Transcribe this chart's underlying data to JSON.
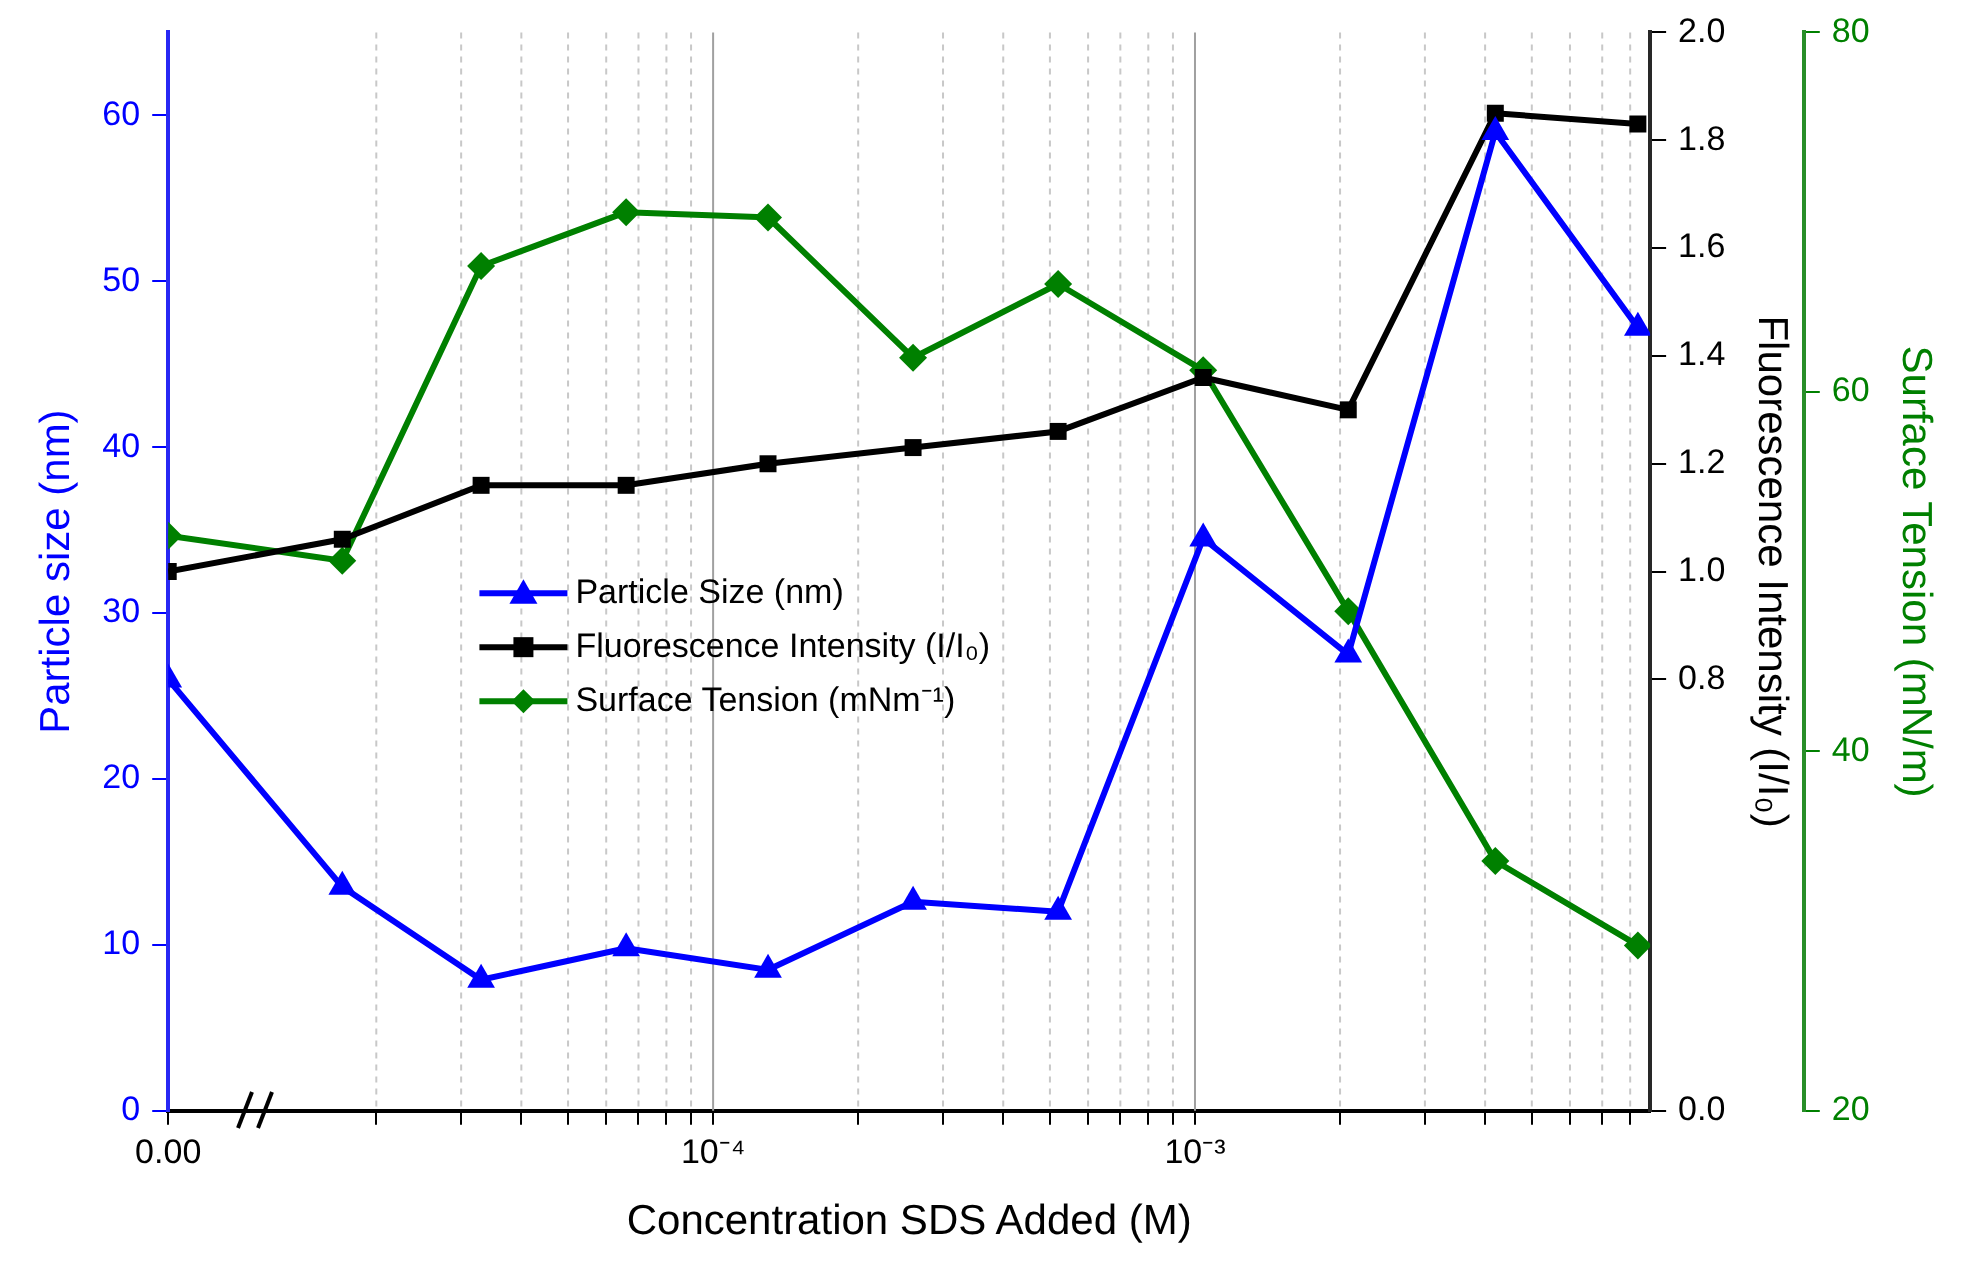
{
  "chart_data": {
    "type": "line",
    "xlabel": "Concentration SDS Added (M)",
    "ylabel": "Particle size (nm)",
    "y2label": "Fluorescence Intensity (I/I₀)",
    "y3label": "Surface Tension (mN/m)",
    "x": [
      7.4e-06,
      1.7e-05,
      3.3e-05,
      6.6e-05,
      0.00013,
      0.00026,
      0.00052,
      0.00104,
      0.00208,
      0.0042,
      0.0083
    ],
    "log": "x",
    "xlim": [
      7.4e-06,
      0.0088
    ],
    "xticks": [
      {
        "value": 7.4e-06,
        "label": "0.00"
      },
      {
        "value": 2e-05,
        "label": null
      },
      {
        "value": 3e-05,
        "label": null
      },
      {
        "value": 4e-05,
        "label": null
      },
      {
        "value": 5e-05,
        "label": null
      },
      {
        "value": 6e-05,
        "label": null
      },
      {
        "value": 7e-05,
        "label": null
      },
      {
        "value": 8e-05,
        "label": null
      },
      {
        "value": 9e-05,
        "label": null
      },
      {
        "value": 0.0001,
        "label": "10⁻⁴"
      },
      {
        "value": 0.0002,
        "label": null
      },
      {
        "value": 0.0003,
        "label": null
      },
      {
        "value": 0.0004,
        "label": null
      },
      {
        "value": 0.0005,
        "label": null
      },
      {
        "value": 0.0006,
        "label": null
      },
      {
        "value": 0.0007,
        "label": null
      },
      {
        "value": 0.0008,
        "label": null
      },
      {
        "value": 0.0009,
        "label": null
      },
      {
        "value": 0.001,
        "label": "10⁻³"
      },
      {
        "value": 0.002,
        "label": null
      },
      {
        "value": 0.003,
        "label": null
      },
      {
        "value": 0.004,
        "label": null
      },
      {
        "value": 0.005,
        "label": null
      },
      {
        "value": 0.006,
        "label": null
      },
      {
        "value": 0.007,
        "label": null
      },
      {
        "value": 0.008,
        "label": null
      }
    ],
    "ylim": [
      0,
      65
    ],
    "yticks": [
      0,
      10,
      20,
      30,
      40,
      50,
      60
    ],
    "y2lim": [
      0,
      2.0
    ],
    "y2ticks": [
      {
        "value": 0,
        "label": "0.0"
      },
      {
        "value": 0.8,
        "label": "0.8"
      },
      {
        "value": 1.0,
        "label": "1.0"
      },
      {
        "value": 1.2,
        "label": "1.2"
      },
      {
        "value": 1.4,
        "label": "1.4"
      },
      {
        "value": 1.6,
        "label": "1.6"
      },
      {
        "value": 1.8,
        "label": "1.8"
      },
      {
        "value": 2.0,
        "label": "2.0"
      }
    ],
    "y3lim": [
      20,
      80
    ],
    "y3ticks": [
      20,
      40,
      60,
      80
    ],
    "grid": "x",
    "legend": "left",
    "series": [
      {
        "name": "Particle Size (nm)",
        "color": "#0000ff",
        "marker": "triangle",
        "values": [
          26,
          13.5,
          7.9,
          9.8,
          8.5,
          12.6,
          12,
          34.5,
          27.5,
          59,
          47.2
        ]
      },
      {
        "name": "Fluorescence Intensity (I/I₀)",
        "color": "#000000",
        "marker": "square",
        "axis": "y2",
        "values": [
          1.0,
          1.06,
          1.16,
          1.16,
          1.2,
          1.23,
          1.26,
          1.36,
          1.3,
          1.85,
          1.83
        ]
      },
      {
        "name": "Surface Tension (mNm⁻¹)",
        "color": "#008000",
        "marker": "diamond",
        "axis": "y3",
        "values": [
          52,
          50.6,
          67,
          70,
          69.7,
          61.9,
          66,
          61.2,
          47.8,
          33.9,
          29.2
        ]
      }
    ]
  }
}
